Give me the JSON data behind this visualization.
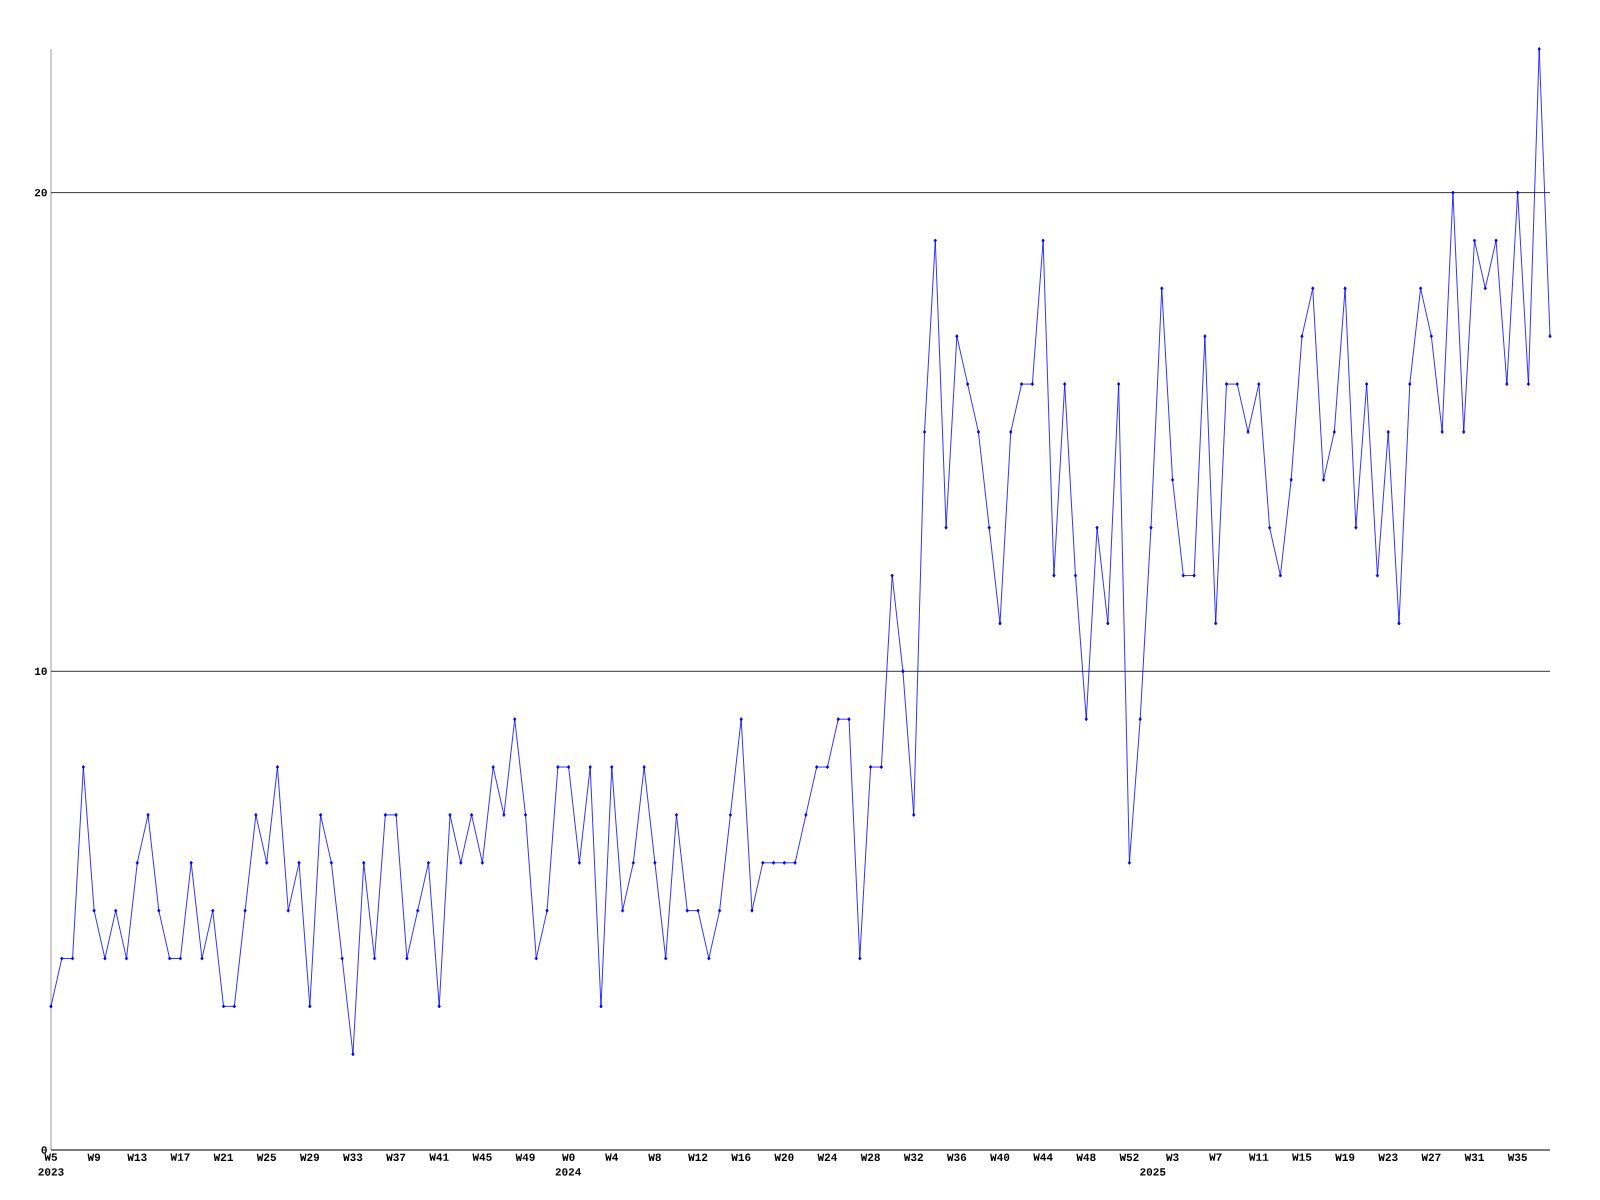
{
  "chart_data": {
    "type": "line",
    "color": "#0000ff",
    "marker": "diamond",
    "grid": "y",
    "categories": [
      "W5",
      null,
      null,
      null,
      "W9",
      null,
      null,
      null,
      "W13",
      null,
      null,
      null,
      "W17",
      null,
      null,
      null,
      "W21",
      null,
      null,
      null,
      "W25",
      null,
      null,
      null,
      "W29",
      null,
      null,
      null,
      "W33",
      null,
      null,
      null,
      "W37",
      null,
      null,
      null,
      "W41",
      null,
      null,
      null,
      "W45",
      null,
      null,
      null,
      "W49",
      null,
      null,
      null,
      "W0",
      null,
      null,
      null,
      "W4",
      null,
      null,
      null,
      "W8",
      null,
      null,
      null,
      "W12",
      null,
      null,
      null,
      "W16",
      null,
      null,
      null,
      "W20",
      null,
      null,
      null,
      "W24",
      null,
      null,
      null,
      "W28",
      null,
      null,
      null,
      "W32",
      null,
      null,
      null,
      "W36",
      null,
      null,
      null,
      "W40",
      null,
      null,
      null,
      "W44",
      null,
      null,
      null,
      "W48",
      null,
      null,
      null,
      "W52",
      null,
      null,
      null,
      "W3",
      null,
      null,
      null,
      "W7",
      null,
      null,
      null,
      "W11",
      null,
      null,
      null,
      "W15",
      null,
      null,
      null,
      "W19",
      null,
      null,
      null,
      "W23",
      null,
      null,
      null,
      "W27",
      null,
      null,
      null,
      "W31",
      null,
      null,
      null,
      "W35",
      null,
      null,
      null
    ],
    "values": [
      3,
      4,
      4,
      8,
      5,
      4,
      5,
      4,
      6,
      7,
      5,
      4,
      4,
      6,
      4,
      5,
      3,
      3,
      5,
      7,
      6,
      8,
      5,
      6,
      3,
      7,
      6,
      4,
      2,
      6,
      4,
      7,
      7,
      4,
      5,
      6,
      3,
      7,
      6,
      7,
      6,
      8,
      7,
      9,
      7,
      4,
      5,
      8,
      8,
      6,
      8,
      3,
      8,
      5,
      6,
      8,
      6,
      4,
      7,
      5,
      5,
      4,
      5,
      7,
      9,
      5,
      6,
      6,
      6,
      6,
      7,
      8,
      8,
      9,
      9,
      4,
      8,
      8,
      12,
      10,
      7,
      15,
      19,
      13,
      17,
      16,
      15,
      13,
      11,
      15,
      16,
      16,
      19,
      12,
      16,
      12,
      9,
      13,
      11,
      16,
      6,
      9,
      13,
      18,
      14,
      12,
      12,
      17,
      11,
      16,
      16,
      15,
      16,
      13,
      12,
      14,
      17,
      18,
      14,
      15,
      18,
      13,
      16,
      12,
      15,
      11,
      16,
      18,
      17,
      15,
      20,
      15,
      19,
      18,
      19,
      16,
      20,
      16,
      23,
      17
    ],
    "ylim": [
      0,
      23
    ],
    "yticks": [
      0,
      10,
      20
    ],
    "annotations": [
      "2023",
      "2024",
      "2025"
    ]
  }
}
